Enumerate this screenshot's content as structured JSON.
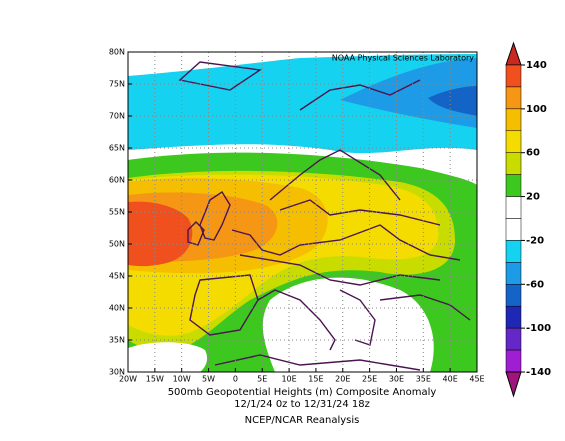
{
  "map": {
    "credit": "NOAA Physical Sciences Laboratory",
    "lon_ticks": [
      "20W",
      "15W",
      "10W",
      "5W",
      "0",
      "5E",
      "10E",
      "15E",
      "20E",
      "25E",
      "30E",
      "35E",
      "40E",
      "45E"
    ],
    "lat_ticks": [
      "80N",
      "75N",
      "70N",
      "65N",
      "60N",
      "55N",
      "50N",
      "45N",
      "40N",
      "35N",
      "30N"
    ]
  },
  "caption": {
    "line1": "500mb Geopotential Heights (m)   Composite Anomaly",
    "line2": "12/1/24 0z  to 12/31/24 18z",
    "line3": "NCEP/NCAR Reanalysis"
  },
  "colorbar": {
    "ticks": [
      140,
      100,
      60,
      20,
      -20,
      -60,
      -100,
      -140
    ],
    "colors": [
      "#c8281e",
      "#f0501e",
      "#f59614",
      "#f5be00",
      "#f5dc00",
      "#c8dc00",
      "#3cc81e",
      "#ffffff",
      "#ffffff",
      "#14d2f0",
      "#1e9be6",
      "#1464c8",
      "#1e28b4",
      "#6428c8",
      "#a01ed2",
      "#a0147d"
    ]
  }
}
